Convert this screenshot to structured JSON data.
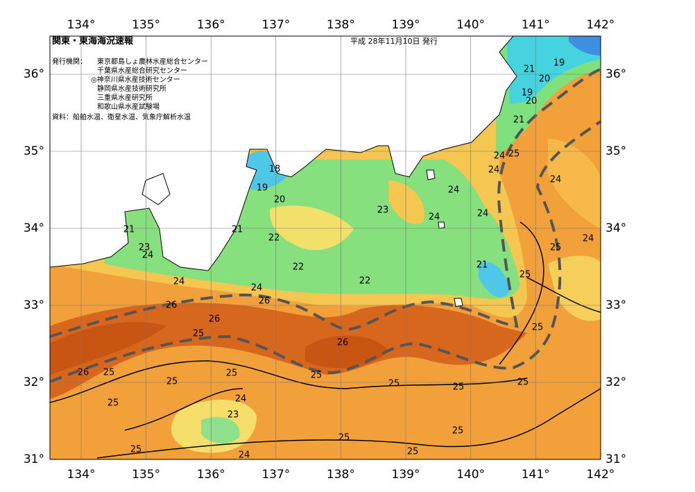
{
  "header": {
    "title": "関東・東海海況速報",
    "date": "平成 28年11月10日 発行",
    "issuer_label": "発行機関：",
    "issuers": [
      "東京都島しょ農林水産総合センター",
      "千葉県水産総合研究センター",
      "◎神奈川県水産技術センター",
      "静岡県水産技術研究所",
      "三重県水産研究所",
      "和歌山県水産試験場"
    ],
    "source": "資料：船舶水温、衛星水温、気象庁解析水温"
  },
  "axes": {
    "longitudes": [
      "134°",
      "135°",
      "136°",
      "137°",
      "138°",
      "139°",
      "140°",
      "141°",
      "142°"
    ],
    "latitudes": [
      "31°",
      "32°",
      "33°",
      "34°",
      "35°",
      "36°"
    ]
  },
  "contour_labels": [
    19,
    21,
    20,
    19,
    20,
    21,
    24,
    25,
    24,
    24,
    18,
    19,
    20,
    24,
    23,
    24,
    24,
    21,
    21,
    22,
    25,
    24,
    23,
    24,
    22,
    21,
    25,
    24,
    22,
    24,
    26,
    26,
    26,
    25,
    25,
    26,
    26,
    25,
    25,
    25,
    25,
    25,
    25,
    25,
    24,
    25,
    23,
    25,
    25,
    25,
    25,
    24
  ]
}
